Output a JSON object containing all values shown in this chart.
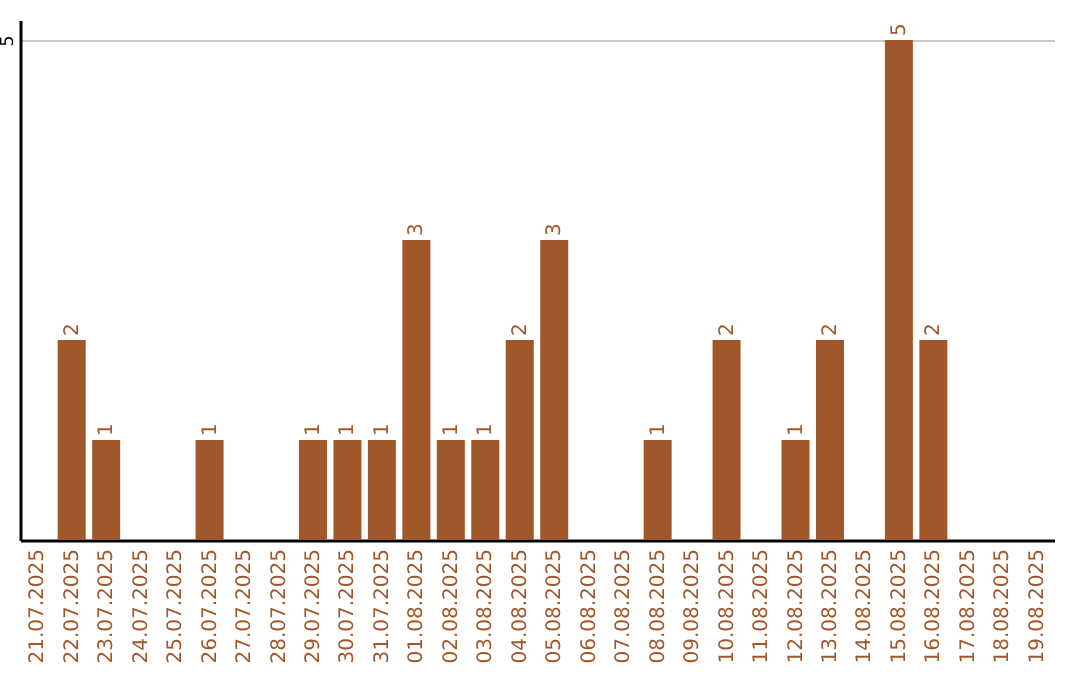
{
  "chart_data": {
    "type": "bar",
    "categories": [
      "21.07.2025",
      "22.07.2025",
      "23.07.2025",
      "24.07.2025",
      "25.07.2025",
      "26.07.2025",
      "27.07.2025",
      "28.07.2025",
      "29.07.2025",
      "30.07.2025",
      "31.07.2025",
      "01.08.2025",
      "02.08.2025",
      "03.08.2025",
      "04.08.2025",
      "05.08.2025",
      "06.08.2025",
      "07.08.2025",
      "08.08.2025",
      "09.08.2025",
      "10.08.2025",
      "11.08.2025",
      "12.08.2025",
      "13.08.2025",
      "14.08.2025",
      "15.08.2025",
      "16.08.2025",
      "17.08.2025",
      "18.08.2025",
      "19.08.2025"
    ],
    "values": [
      0,
      2,
      1,
      0,
      0,
      1,
      0,
      0,
      1,
      1,
      1,
      3,
      1,
      1,
      2,
      3,
      0,
      0,
      1,
      0,
      2,
      0,
      1,
      2,
      0,
      5,
      2,
      0,
      0,
      0
    ],
    "value_labels": [
      null,
      "2",
      "1",
      null,
      null,
      "1",
      null,
      null,
      "1",
      "1",
      "1",
      "3",
      "1",
      "1",
      "2",
      "3",
      null,
      null,
      "1",
      null,
      "2",
      null,
      "1",
      "2",
      null,
      "5",
      "2",
      null,
      null,
      null
    ],
    "color": "#a0572a",
    "ylim": [
      0,
      5.2
    ],
    "yticks": [
      5
    ],
    "grid": "y"
  }
}
